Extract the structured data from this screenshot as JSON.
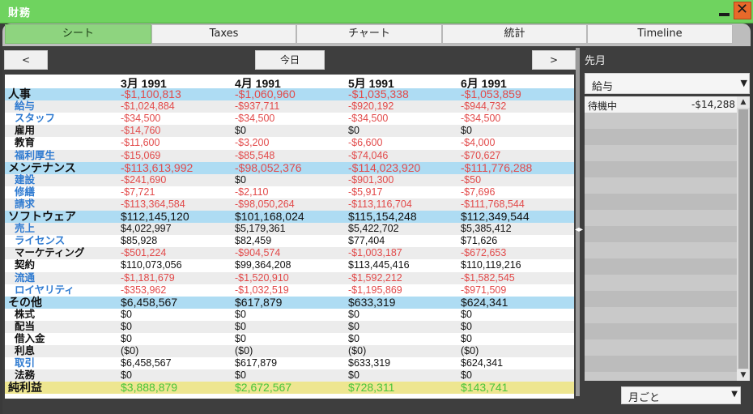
{
  "window": {
    "title": "財務"
  },
  "tabs": [
    {
      "label": "シート",
      "active": true
    },
    {
      "label": "Taxes"
    },
    {
      "label": "チャート"
    },
    {
      "label": "統計"
    },
    {
      "label": "Timeline"
    }
  ],
  "nav": {
    "prev": "<",
    "today": "今日",
    "next": ">"
  },
  "sheet": {
    "months": [
      "3月 1991",
      "4月 1991",
      "5月 1991",
      "6月 1991"
    ],
    "rows": [
      {
        "label": "人事",
        "kind": "cat",
        "values": [
          "-$1,100,813",
          "-$1,060,960",
          "-$1,035,338",
          "-$1,053,859"
        ]
      },
      {
        "label": "給与",
        "kind": "sub-blue",
        "values": [
          "-$1,024,884",
          "-$937,711",
          "-$920,192",
          "-$944,732"
        ]
      },
      {
        "label": "スタッフ",
        "kind": "sub-blue",
        "values": [
          "-$34,500",
          "-$34,500",
          "-$34,500",
          "-$34,500"
        ]
      },
      {
        "label": "雇用",
        "kind": "sub-black",
        "values": [
          "-$14,760",
          "$0",
          "$0",
          "$0"
        ]
      },
      {
        "label": "教育",
        "kind": "sub-black",
        "values": [
          "-$11,600",
          "-$3,200",
          "-$6,600",
          "-$4,000"
        ]
      },
      {
        "label": "福利厚生",
        "kind": "sub-blue",
        "values": [
          "-$15,069",
          "-$85,548",
          "-$74,046",
          "-$70,627"
        ]
      },
      {
        "label": "メンテナンス",
        "kind": "cat",
        "values": [
          "-$113,613,992",
          "-$98,052,376",
          "-$114,023,920",
          "-$111,776,288"
        ]
      },
      {
        "label": "建設",
        "kind": "sub-blue",
        "values": [
          "-$241,690",
          "$0",
          "-$901,300",
          "-$50"
        ]
      },
      {
        "label": "修繕",
        "kind": "sub-blue",
        "values": [
          "-$7,721",
          "-$2,110",
          "-$5,917",
          "-$7,696"
        ]
      },
      {
        "label": "請求",
        "kind": "sub-blue",
        "values": [
          "-$113,364,584",
          "-$98,050,264",
          "-$113,116,704",
          "-$111,768,544"
        ]
      },
      {
        "label": "ソフトウェア",
        "kind": "cat",
        "values": [
          "$112,145,120",
          "$101,168,024",
          "$115,154,248",
          "$112,349,544"
        ]
      },
      {
        "label": "売上",
        "kind": "sub-blue",
        "values": [
          "$4,022,997",
          "$5,179,361",
          "$5,422,702",
          "$5,385,412"
        ]
      },
      {
        "label": "ライセンス",
        "kind": "sub-blue",
        "values": [
          "$85,928",
          "$82,459",
          "$77,404",
          "$71,626"
        ]
      },
      {
        "label": "マーケティング",
        "kind": "sub-black",
        "values": [
          "-$501,224",
          "-$904,574",
          "-$1,003,187",
          "-$672,653"
        ]
      },
      {
        "label": "契約",
        "kind": "sub-black",
        "values": [
          "$110,073,056",
          "$99,364,208",
          "$113,445,416",
          "$110,119,216"
        ]
      },
      {
        "label": "流通",
        "kind": "sub-blue",
        "values": [
          "-$1,181,679",
          "-$1,520,910",
          "-$1,592,212",
          "-$1,582,545"
        ]
      },
      {
        "label": "ロイヤリティ",
        "kind": "sub-blue",
        "values": [
          "-$353,962",
          "-$1,032,519",
          "-$1,195,869",
          "-$971,509"
        ]
      },
      {
        "label": "その他",
        "kind": "cat",
        "values": [
          "$6,458,567",
          "$617,879",
          "$633,319",
          "$624,341"
        ]
      },
      {
        "label": "株式",
        "kind": "sub-black",
        "values": [
          "$0",
          "$0",
          "$0",
          "$0"
        ]
      },
      {
        "label": "配当",
        "kind": "sub-black",
        "values": [
          "$0",
          "$0",
          "$0",
          "$0"
        ]
      },
      {
        "label": "借入金",
        "kind": "sub-black",
        "values": [
          "$0",
          "$0",
          "$0",
          "$0"
        ]
      },
      {
        "label": "利息",
        "kind": "sub-black",
        "values": [
          "($0)",
          "($0)",
          "($0)",
          "($0)"
        ]
      },
      {
        "label": "取引",
        "kind": "sub-blue",
        "values": [
          "$6,458,567",
          "$617,879",
          "$633,319",
          "$624,341"
        ]
      },
      {
        "label": "法務",
        "kind": "sub-black",
        "values": [
          "$0",
          "$0",
          "$0",
          "$0"
        ]
      },
      {
        "label": "純利益",
        "kind": "net",
        "values": [
          "$3,888,879",
          "$2,672,567",
          "$728,311",
          "$143,741"
        ]
      }
    ]
  },
  "side": {
    "title": "先月",
    "category": "給与",
    "items": [
      {
        "name": "待機中",
        "value": "-$14,288"
      }
    ],
    "period": "月ごと"
  },
  "icons": {
    "minimize": "minimize-icon",
    "close": "close-icon",
    "dropdown": "chevron-down-icon"
  },
  "colors": {
    "titlebar": "#6fd35f",
    "category_row": "#aedcf3",
    "net_row": "#eee690",
    "negative": "#e24a4a",
    "positive_net": "#49c53a",
    "label_blue": "#2f7bd1",
    "close_button": "#e8692a"
  }
}
